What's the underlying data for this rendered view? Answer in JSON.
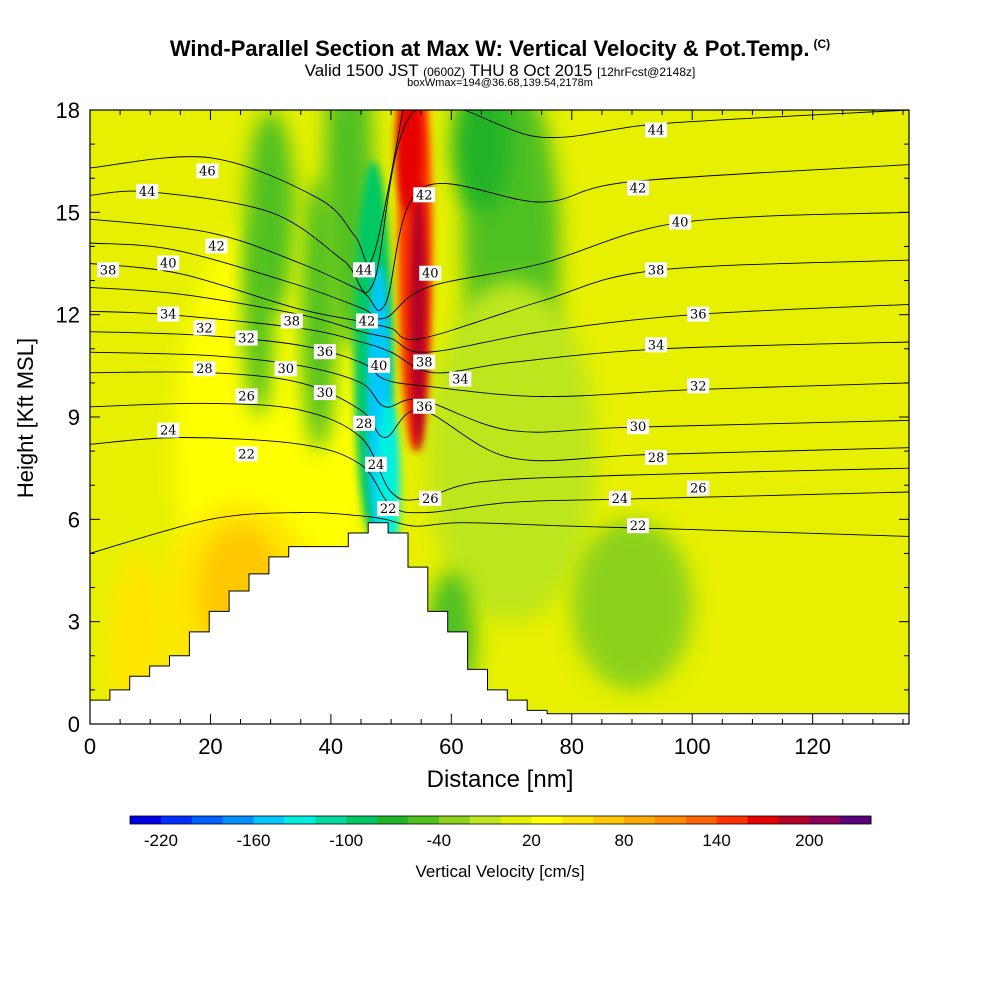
{
  "title": "Wind-Parallel Section at Max W: Vertical Velocity & Pot.Temp.",
  "title_mark": "(C)",
  "subtitle_main": "Valid 1500 JST",
  "subtitle_z": "(0600Z)",
  "subtitle_date": "THU 8 Oct 2015",
  "subtitle_fcst": "[12hrFcst@2148z]",
  "subtitle2": "boxWmax=194@36.68,139.54,2178m",
  "chart_data": {
    "type": "heatmap",
    "xlabel": "Distance [nm]",
    "ylabel": "Height [Kft MSL]",
    "xlim": [
      0,
      136
    ],
    "ylim": [
      0,
      18
    ],
    "x_ticks": [
      "0",
      "20",
      "40",
      "60",
      "80",
      "100",
      "120"
    ],
    "y_ticks": [
      "0",
      "3",
      "6",
      "9",
      "12",
      "15",
      "18"
    ],
    "colorbar": {
      "label": "Vertical Velocity [cm/s]",
      "range": [
        -240,
        240
      ],
      "step": 20,
      "tick_labels": [
        "-220",
        "-160",
        "-100",
        "-40",
        "20",
        "80",
        "140",
        "200"
      ],
      "colors": [
        "#0000e6",
        "#0030ff",
        "#0060ff",
        "#0090ff",
        "#00c8ff",
        "#00f0e0",
        "#00dca0",
        "#00c864",
        "#20b428",
        "#50c020",
        "#8cd21e",
        "#bee61e",
        "#e6f000",
        "#ffff00",
        "#ffe600",
        "#ffc800",
        "#ffaa00",
        "#ff8c00",
        "#ff6400",
        "#ff3200",
        "#e60000",
        "#b40028",
        "#8c005a",
        "#5a0078"
      ]
    },
    "terrain_profile": {
      "x": [
        0,
        3.3,
        3.3,
        6.6,
        6.6,
        9.9,
        9.9,
        13.2,
        13.2,
        16.5,
        16.5,
        19.8,
        19.8,
        23.1,
        23.1,
        26.4,
        26.4,
        29.7,
        29.7,
        33,
        33,
        42.9,
        42.9,
        46.2,
        46.2,
        49.5,
        49.5,
        52.8,
        52.8,
        56.1,
        56.1,
        59.4,
        59.4,
        62.7,
        62.7,
        66,
        66,
        69.3,
        69.3,
        72.6,
        72.6,
        75.9,
        75.9,
        136
      ],
      "y": [
        0.7,
        0.7,
        1.0,
        1.0,
        1.4,
        1.4,
        1.7,
        1.7,
        2.0,
        2.0,
        2.7,
        2.7,
        3.3,
        3.3,
        3.9,
        3.9,
        4.4,
        4.4,
        4.9,
        4.9,
        5.2,
        5.2,
        5.6,
        5.6,
        5.9,
        5.9,
        5.6,
        5.6,
        4.6,
        4.6,
        3.3,
        3.3,
        2.7,
        2.7,
        1.6,
        1.6,
        1.0,
        1.0,
        0.7,
        0.7,
        0.4,
        0.4,
        0.3,
        0.3
      ]
    },
    "velocity_features": [
      {
        "kind": "updraft-core",
        "x": 55,
        "y": 14.5,
        "w_cms": 194
      },
      {
        "kind": "downdraft-core",
        "x": 48,
        "y": 9.5,
        "w_cms": -200
      },
      {
        "kind": "warm-slope-band",
        "x": 25,
        "y": 4.0,
        "w_cms": 60
      }
    ],
    "theta_contours": [
      {
        "label": "22",
        "x": [
          0,
          20,
          35,
          45,
          49,
          54,
          62,
          80,
          100,
          136
        ],
        "y": [
          5.0,
          6.0,
          6.2,
          6.1,
          6.0,
          5.8,
          5.9,
          5.8,
          5.7,
          5.5
        ]
      },
      {
        "label": "24",
        "x": [
          0,
          15,
          35,
          45,
          50,
          56,
          70,
          90,
          136
        ],
        "y": [
          8.2,
          8.4,
          8.2,
          7.6,
          6.4,
          6.2,
          6.5,
          6.6,
          6.8
        ]
      },
      {
        "label": "26",
        "x": [
          0,
          20,
          35,
          45,
          50,
          55,
          65,
          90,
          136
        ],
        "y": [
          9.3,
          9.4,
          9.2,
          8.4,
          6.8,
          6.6,
          7.1,
          7.3,
          7.5
        ]
      },
      {
        "label": "28",
        "x": [
          0,
          20,
          35,
          45,
          49,
          55,
          70,
          93,
          136
        ],
        "y": [
          10.3,
          10.3,
          10.0,
          9.2,
          8.4,
          9.2,
          7.8,
          7.9,
          8.1
        ]
      },
      {
        "label": "30",
        "x": [
          0,
          20,
          35,
          45,
          49,
          55,
          70,
          90,
          136
        ],
        "y": [
          10.9,
          10.8,
          10.5,
          10.0,
          9.3,
          9.5,
          8.6,
          8.7,
          8.9
        ]
      },
      {
        "label": "32",
        "x": [
          0,
          18,
          35,
          45,
          49,
          56,
          75,
          100,
          136
        ],
        "y": [
          11.5,
          11.4,
          11.1,
          10.6,
          10.1,
          9.9,
          9.6,
          9.8,
          10.0
        ]
      },
      {
        "label": "34",
        "x": [
          0,
          13,
          35,
          45,
          50,
          57,
          70,
          95,
          136
        ],
        "y": [
          12.1,
          12.0,
          11.6,
          11.2,
          10.9,
          10.3,
          10.6,
          11.0,
          11.2
        ]
      },
      {
        "label": "36",
        "x": [
          0,
          15,
          35,
          45,
          50,
          56,
          75,
          100,
          136
        ],
        "y": [
          12.8,
          12.6,
          12.0,
          11.5,
          11.3,
          10.9,
          11.5,
          12.0,
          12.3
        ]
      },
      {
        "label": "38",
        "x": [
          0,
          15,
          34,
          45,
          50,
          55,
          75,
          94,
          136
        ],
        "y": [
          13.5,
          13.2,
          12.2,
          11.8,
          11.6,
          11.3,
          12.4,
          13.3,
          13.6
        ]
      },
      {
        "label": "40",
        "x": [
          0,
          14,
          34,
          45,
          49,
          56,
          75,
          98,
          136
        ],
        "y": [
          14.1,
          13.9,
          12.9,
          12.2,
          11.9,
          12.8,
          13.5,
          14.7,
          15.0
        ]
      },
      {
        "label": "42",
        "x": [
          0,
          20,
          35,
          45,
          49,
          55,
          75,
          90,
          136
        ],
        "y": [
          14.8,
          14.4,
          13.5,
          12.7,
          12.3,
          15.7,
          15.3,
          15.9,
          16.4
        ]
      },
      {
        "label": "44",
        "x": [
          0,
          10,
          30,
          42,
          47,
          54,
          75,
          95,
          136
        ],
        "y": [
          15.5,
          15.6,
          15.0,
          13.6,
          12.9,
          18.0,
          17.2,
          17.6,
          18.0
        ]
      },
      {
        "label": "46",
        "x": [
          0,
          20,
          38,
          44,
          47,
          52
        ],
        "y": [
          16.3,
          16.6,
          15.4,
          14.3,
          13.7,
          18.0
        ]
      }
    ],
    "contour_labels": [
      {
        "text": "46",
        "x": 19.5,
        "y": 16.2
      },
      {
        "text": "44",
        "x": 9.5,
        "y": 15.6
      },
      {
        "text": "42",
        "x": 21,
        "y": 14.0
      },
      {
        "text": "40",
        "x": 13,
        "y": 13.5
      },
      {
        "text": "38",
        "x": 3,
        "y": 13.3
      },
      {
        "text": "34",
        "x": 13,
        "y": 12.0
      },
      {
        "text": "32",
        "x": 19,
        "y": 11.6
      },
      {
        "text": "32",
        "x": 26,
        "y": 11.3
      },
      {
        "text": "28",
        "x": 19,
        "y": 10.4
      },
      {
        "text": "38",
        "x": 33.5,
        "y": 11.8
      },
      {
        "text": "36",
        "x": 39,
        "y": 10.9
      },
      {
        "text": "30",
        "x": 32.5,
        "y": 10.4
      },
      {
        "text": "30",
        "x": 39,
        "y": 9.7
      },
      {
        "text": "26",
        "x": 26,
        "y": 9.6
      },
      {
        "text": "24",
        "x": 13,
        "y": 8.6
      },
      {
        "text": "22",
        "x": 26,
        "y": 7.9
      },
      {
        "text": "44",
        "x": 45.5,
        "y": 13.3
      },
      {
        "text": "42",
        "x": 46,
        "y": 11.8
      },
      {
        "text": "40",
        "x": 48,
        "y": 10.5
      },
      {
        "text": "28",
        "x": 45.5,
        "y": 8.8
      },
      {
        "text": "24",
        "x": 47.5,
        "y": 7.6
      },
      {
        "text": "22",
        "x": 49.5,
        "y": 6.3
      },
      {
        "text": "42",
        "x": 55.5,
        "y": 15.5
      },
      {
        "text": "40",
        "x": 56.5,
        "y": 13.2
      },
      {
        "text": "38",
        "x": 55.5,
        "y": 10.6
      },
      {
        "text": "36",
        "x": 55.5,
        "y": 9.3
      },
      {
        "text": "34",
        "x": 61.5,
        "y": 10.1
      },
      {
        "text": "26",
        "x": 56.5,
        "y": 6.6
      },
      {
        "text": "44",
        "x": 94,
        "y": 17.4
      },
      {
        "text": "42",
        "x": 91,
        "y": 15.7
      },
      {
        "text": "40",
        "x": 98,
        "y": 14.7
      },
      {
        "text": "38",
        "x": 94,
        "y": 13.3
      },
      {
        "text": "36",
        "x": 101,
        "y": 12.0
      },
      {
        "text": "34",
        "x": 94,
        "y": 11.1
      },
      {
        "text": "32",
        "x": 101,
        "y": 9.9
      },
      {
        "text": "30",
        "x": 91,
        "y": 8.7
      },
      {
        "text": "28",
        "x": 94,
        "y": 7.8
      },
      {
        "text": "26",
        "x": 101,
        "y": 6.9
      },
      {
        "text": "24",
        "x": 88,
        "y": 6.6
      },
      {
        "text": "22",
        "x": 91,
        "y": 5.8
      }
    ]
  }
}
